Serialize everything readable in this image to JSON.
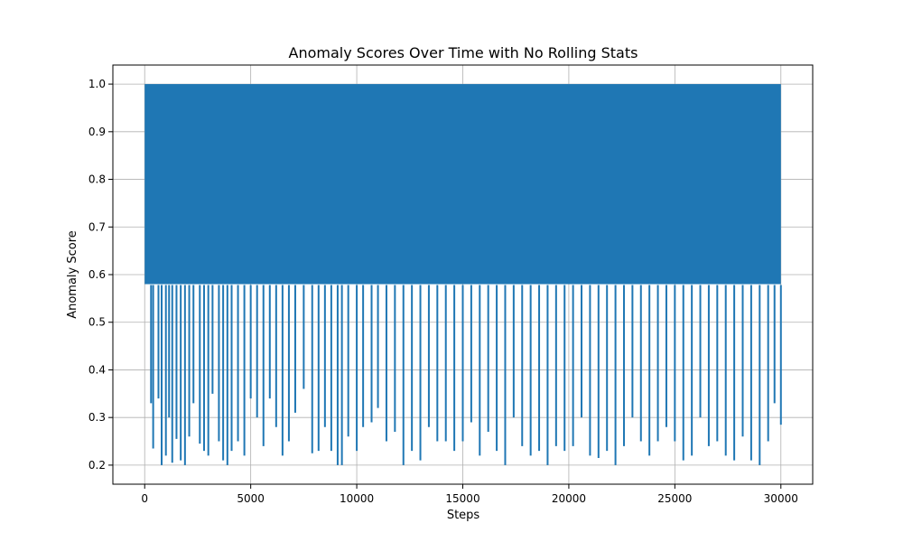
{
  "chart_data": {
    "type": "line",
    "title": "Anomaly Scores Over Time with No Rolling Stats",
    "xlabel": "Steps",
    "ylabel": "Anomaly Score",
    "xlim": [
      -1500,
      31500
    ],
    "ylim": [
      0.16,
      1.04
    ],
    "xticks": [
      0,
      5000,
      10000,
      15000,
      20000,
      25000,
      30000
    ],
    "yticks": [
      0.2,
      0.3,
      0.4,
      0.5,
      0.6,
      0.7,
      0.8,
      0.9,
      1.0
    ],
    "xtick_labels": [
      "0",
      "5000",
      "10000",
      "15000",
      "20000",
      "25000",
      "30000"
    ],
    "ytick_labels": [
      "0.2",
      "0.3",
      "0.4",
      "0.5",
      "0.6",
      "0.7",
      "0.8",
      "0.9",
      "1.0"
    ],
    "grid": true,
    "series": [
      {
        "color": "#1f77b4",
        "x_range": [
          0,
          30000
        ],
        "upper_envelope": 1.0,
        "dense_band": [
          0.58,
          1.0
        ],
        "dips": [
          [
            300,
            0.33
          ],
          [
            400,
            0.235
          ],
          [
            650,
            0.34
          ],
          [
            800,
            0.2
          ],
          [
            1000,
            0.22
          ],
          [
            1150,
            0.3
          ],
          [
            1300,
            0.205
          ],
          [
            1500,
            0.255
          ],
          [
            1700,
            0.21
          ],
          [
            1900,
            0.2
          ],
          [
            2100,
            0.26
          ],
          [
            2300,
            0.33
          ],
          [
            2600,
            0.245
          ],
          [
            2800,
            0.23
          ],
          [
            3000,
            0.22
          ],
          [
            3200,
            0.35
          ],
          [
            3500,
            0.25
          ],
          [
            3700,
            0.21
          ],
          [
            3900,
            0.2
          ],
          [
            4100,
            0.23
          ],
          [
            4400,
            0.25
          ],
          [
            4700,
            0.22
          ],
          [
            5000,
            0.34
          ],
          [
            5300,
            0.3
          ],
          [
            5600,
            0.24
          ],
          [
            5900,
            0.34
          ],
          [
            6200,
            0.28
          ],
          [
            6500,
            0.22
          ],
          [
            6800,
            0.25
          ],
          [
            7100,
            0.31
          ],
          [
            7500,
            0.36
          ],
          [
            7900,
            0.225
          ],
          [
            8200,
            0.23
          ],
          [
            8500,
            0.28
          ],
          [
            8800,
            0.23
          ],
          [
            9100,
            0.2
          ],
          [
            9300,
            0.2
          ],
          [
            9600,
            0.26
          ],
          [
            10000,
            0.23
          ],
          [
            10300,
            0.28
          ],
          [
            10700,
            0.29
          ],
          [
            11000,
            0.32
          ],
          [
            11400,
            0.25
          ],
          [
            11800,
            0.27
          ],
          [
            12200,
            0.2
          ],
          [
            12600,
            0.23
          ],
          [
            13000,
            0.21
          ],
          [
            13400,
            0.28
          ],
          [
            13800,
            0.25
          ],
          [
            14200,
            0.25
          ],
          [
            14600,
            0.23
          ],
          [
            15000,
            0.25
          ],
          [
            15400,
            0.29
          ],
          [
            15800,
            0.22
          ],
          [
            16200,
            0.27
          ],
          [
            16600,
            0.23
          ],
          [
            17000,
            0.2
          ],
          [
            17400,
            0.3
          ],
          [
            17800,
            0.24
          ],
          [
            18200,
            0.22
          ],
          [
            18600,
            0.23
          ],
          [
            19000,
            0.2
          ],
          [
            19400,
            0.24
          ],
          [
            19800,
            0.23
          ],
          [
            20200,
            0.24
          ],
          [
            20600,
            0.3
          ],
          [
            21000,
            0.22
          ],
          [
            21400,
            0.215
          ],
          [
            21800,
            0.23
          ],
          [
            22200,
            0.2
          ],
          [
            22600,
            0.24
          ],
          [
            23000,
            0.3
          ],
          [
            23400,
            0.25
          ],
          [
            23800,
            0.22
          ],
          [
            24200,
            0.25
          ],
          [
            24600,
            0.28
          ],
          [
            25000,
            0.25
          ],
          [
            25400,
            0.21
          ],
          [
            25800,
            0.22
          ],
          [
            26200,
            0.3
          ],
          [
            26600,
            0.24
          ],
          [
            27000,
            0.25
          ],
          [
            27400,
            0.22
          ],
          [
            27800,
            0.21
          ],
          [
            28200,
            0.26
          ],
          [
            28600,
            0.21
          ],
          [
            29000,
            0.2
          ],
          [
            29400,
            0.25
          ],
          [
            29700,
            0.33
          ],
          [
            30000,
            0.285
          ]
        ]
      }
    ]
  }
}
